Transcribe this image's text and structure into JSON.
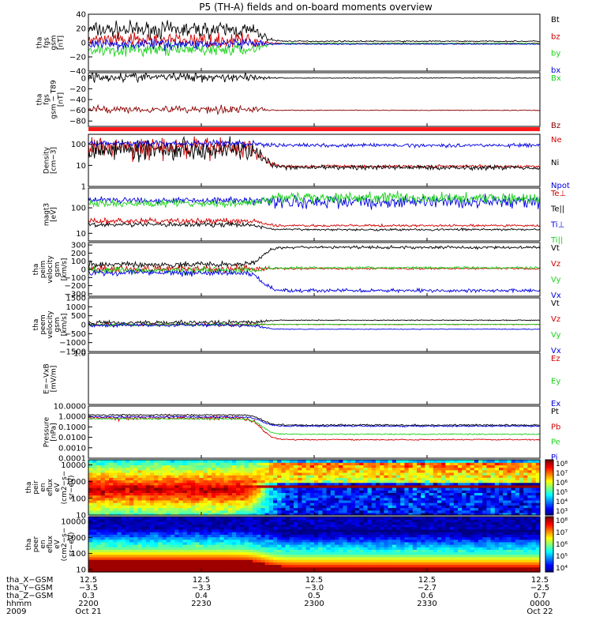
{
  "title": "P5 (TH-A) fields and on-board moments overview",
  "colors": {
    "black": "#000000",
    "red": "#d10000",
    "green": "#1cd11c",
    "blue": "#0000e0",
    "dark_red": "#8b0000",
    "red_bar": "#ff1a1a"
  },
  "chart_data": [
    {
      "type": "line",
      "ylabel": [
        "tha",
        "fgs",
        "gsm",
        "[nT]"
      ],
      "ylim": [
        -40,
        40
      ],
      "yticks": [
        "40",
        "20",
        "0",
        "−20",
        "−40"
      ],
      "ytick_values": [
        40,
        20,
        0,
        -20,
        -40
      ],
      "series": [
        {
          "name": "Bt",
          "color": "#000000",
          "pre": 18,
          "post": 2,
          "noise_pre": 8,
          "noise_post": 0.6
        },
        {
          "name": "bz",
          "color": "#d10000",
          "pre": 3,
          "post": -1,
          "noise_pre": 7,
          "noise_post": 0.6
        },
        {
          "name": "by",
          "color": "#1cd11c",
          "pre": -10,
          "post": -1,
          "noise_pre": 6,
          "noise_post": 0.5
        },
        {
          "name": "bx",
          "color": "#0000e0",
          "pre": -2,
          "post": -2,
          "noise_pre": 5,
          "noise_post": 0.5
        }
      ]
    },
    {
      "type": "line",
      "ylabel": [
        "tha",
        "fgs",
        "gsm − T89",
        "[nT]"
      ],
      "ylim": [
        -90,
        10
      ],
      "yticks": [
        "0",
        "−20",
        "−40",
        "−60",
        "−80"
      ],
      "ytick_values": [
        0,
        -20,
        -40,
        -60,
        -80
      ],
      "series": [
        {
          "name": "Bx",
          "color": "#000000",
          "pre": 2,
          "post": 0,
          "noise_pre": 6,
          "noise_post": 0.5
        },
        {
          "name": "Bz",
          "color": "#8b0000",
          "pre": -58,
          "post": -60,
          "noise_pre": 5,
          "noise_post": 0.5
        }
      ],
      "label_colors": [
        "#1cd11c",
        "#8b0000"
      ]
    },
    {
      "type": "line",
      "scale": "log",
      "ylabel": [
        "Density",
        "[cm−3]"
      ],
      "ylim": [
        1,
        300
      ],
      "yticks": [
        "100",
        "10",
        "1"
      ],
      "ytick_values": [
        100,
        10,
        1
      ],
      "series": [
        {
          "name": "Ne",
          "color": "#d10000",
          "pre": 70,
          "post": 9,
          "noise_pre": 0.35,
          "noise_post": 0.05
        },
        {
          "name": "Ni",
          "color": "#000000",
          "pre": 60,
          "post": 8,
          "noise_pre": 0.35,
          "noise_post": 0.08
        },
        {
          "name": "Npot",
          "color": "#0000e0",
          "pre": 110,
          "post": 90,
          "noise_pre": 0.1,
          "noise_post": 0.06
        }
      ]
    },
    {
      "type": "line",
      "scale": "log",
      "ylabel": [
        "magt3",
        "[eV]"
      ],
      "ylim": [
        5,
        600
      ],
      "yticks": [
        "100",
        "10"
      ],
      "ytick_values": [
        100,
        10
      ],
      "series": [
        {
          "name": "Te⊥",
          "color": "#d10000",
          "pre": 30,
          "post": 20,
          "noise_pre": 0.08,
          "noise_post": 0.03
        },
        {
          "name": "Te||",
          "color": "#000000",
          "pre": 22,
          "post": 14,
          "noise_pre": 0.06,
          "noise_post": 0.03
        },
        {
          "name": "Ti⊥",
          "color": "#0000e0",
          "pre": 200,
          "post": 170,
          "noise_pre": 0.1,
          "noise_post": 0.18
        },
        {
          "name": "Ti||",
          "color": "#1cd11c",
          "pre": 150,
          "post": 250,
          "noise_pre": 0.1,
          "noise_post": 0.15
        }
      ]
    },
    {
      "type": "line",
      "ylabel": [
        "tha",
        "peim",
        "velocity",
        "gsm",
        "[km/s]"
      ],
      "ylim": [
        -330,
        330
      ],
      "yticks": [
        "300",
        "200",
        "100",
        "0",
        "−100",
        "−200",
        "−300"
      ],
      "ytick_values": [
        300,
        200,
        100,
        0,
        -100,
        -200,
        -300
      ],
      "series": [
        {
          "name": "Vt",
          "color": "#000000",
          "pre": 60,
          "post": 270,
          "noise_pre": 25,
          "noise_post": 12
        },
        {
          "name": "Vz",
          "color": "#d10000",
          "pre": 5,
          "post": 10,
          "noise_pre": 30,
          "noise_post": 8
        },
        {
          "name": "Vy",
          "color": "#1cd11c",
          "pre": -10,
          "post": 20,
          "noise_pre": 30,
          "noise_post": 10
        },
        {
          "name": "Vx",
          "color": "#0000e0",
          "pre": -40,
          "post": -260,
          "noise_pre": 25,
          "noise_post": 15
        }
      ]
    },
    {
      "type": "line",
      "ylabel": [
        "tha",
        "peem",
        "velocity",
        "gsm",
        "[km/s]"
      ],
      "ylim": [
        -1500,
        1500
      ],
      "yticks": [
        "1500",
        "1000",
        "500",
        "0",
        "−500",
        "−1000",
        "−1500"
      ],
      "ytick_values": [
        1500,
        1000,
        500,
        0,
        -500,
        -1000,
        -1500
      ],
      "series": [
        {
          "name": "Vt",
          "color": "#000000",
          "pre": 120,
          "post": 250,
          "noise_pre": 80,
          "noise_post": 15
        },
        {
          "name": "Vz",
          "color": "#d10000",
          "pre": 0,
          "post": 10,
          "noise_pre": 60,
          "noise_post": 10
        },
        {
          "name": "Vy",
          "color": "#1cd11c",
          "pre": 0,
          "post": 20,
          "noise_pre": 60,
          "noise_post": 10
        },
        {
          "name": "Vx",
          "color": "#0000e0",
          "pre": -20,
          "post": -250,
          "noise_pre": 60,
          "noise_post": 15
        }
      ]
    },
    {
      "type": "line",
      "ylabel": [
        "E=−VxB",
        "[mV/m]"
      ],
      "ylim": [
        -1,
        1
      ],
      "yticks": [
        "1.0"
      ],
      "ytick_values": [
        1
      ],
      "series": [
        {
          "name": "Ez",
          "color": "#d10000",
          "empty": true
        },
        {
          "name": "Ey",
          "color": "#1cd11c",
          "empty": true
        },
        {
          "name": "Ex",
          "color": "#0000e0",
          "empty": true
        }
      ]
    },
    {
      "type": "line",
      "scale": "log",
      "ylabel": [
        "Pressure",
        "[nPa]"
      ],
      "ylim": [
        0.0001,
        10
      ],
      "yticks": [
        "10.0000",
        "1.0000",
        "0.1000",
        "0.0100",
        "0.0010",
        "0.0001"
      ],
      "ytick_values": [
        10,
        1,
        0.1,
        0.01,
        0.001,
        0.0001
      ],
      "series": [
        {
          "name": "Pt",
          "color": "#000000",
          "pre": 1.4,
          "post": 0.15,
          "noise_pre": 0.05,
          "noise_post": 0.06
        },
        {
          "name": "Pb",
          "color": "#d10000",
          "pre": 0.7,
          "post": 0.006,
          "noise_pre": 0.15,
          "noise_post": 0.04
        },
        {
          "name": "Pe",
          "color": "#1cd11c",
          "pre": 0.6,
          "post": 0.02,
          "noise_pre": 0.04,
          "noise_post": 0.04
        },
        {
          "name": "Pi",
          "color": "#0000e0",
          "pre": 0.9,
          "post": 0.12,
          "noise_pre": 0.05,
          "noise_post": 0.05
        }
      ]
    },
    {
      "type": "heatmap",
      "ylabel": [
        "tha",
        "peir",
        "en",
        "eflux",
        "eV",
        "(cm2−s−",
        "sr−eV)"
      ],
      "ylim": [
        10,
        20000
      ],
      "yticks": [
        "10000",
        "1000",
        "100",
        "10"
      ],
      "ytick_values": [
        10000,
        1000,
        100,
        10
      ],
      "colorbar": {
        "ticks": [
          "10⁸",
          "10⁷",
          "10⁶",
          "10⁵",
          "10⁴",
          "10³"
        ],
        "range_log": [
          3,
          8
        ]
      }
    },
    {
      "type": "heatmap",
      "ylabel": [
        "tha",
        "peer",
        "en",
        "eflux",
        "eV",
        "(cm2−s−",
        "sr−eV)"
      ],
      "ylim": [
        7,
        20000
      ],
      "yticks": [
        "10000",
        "1000",
        "100",
        "10"
      ],
      "ytick_values": [
        10000,
        1000,
        100,
        10
      ],
      "colorbar": {
        "ticks": [
          "10⁸",
          "10⁷",
          "10⁶",
          "10⁵",
          "10⁴"
        ],
        "range_log": [
          3.6,
          8.4
        ]
      }
    }
  ],
  "time_axis": {
    "row_labels": [
      "tha_X−GSM",
      "tha_Y−GSM",
      "tha_Z−GSM",
      "hhmm",
      "2009"
    ],
    "ticks": [
      {
        "x_gsm": "12.5",
        "y_gsm": "−3.5",
        "z_gsm": "0.3",
        "hhmm": "2200",
        "date": "Oct 21"
      },
      {
        "x_gsm": "12.5",
        "y_gsm": "−3.3",
        "z_gsm": "0.4",
        "hhmm": "2230",
        "date": ""
      },
      {
        "x_gsm": "12.5",
        "y_gsm": "−3.0",
        "z_gsm": "0.5",
        "hhmm": "2300",
        "date": ""
      },
      {
        "x_gsm": "12.5",
        "y_gsm": "−2.7",
        "z_gsm": "0.6",
        "hhmm": "2330",
        "date": ""
      },
      {
        "x_gsm": "12.5",
        "y_gsm": "−2.5",
        "z_gsm": "0.7",
        "hhmm": "0000",
        "date": "Oct 22"
      }
    ]
  }
}
